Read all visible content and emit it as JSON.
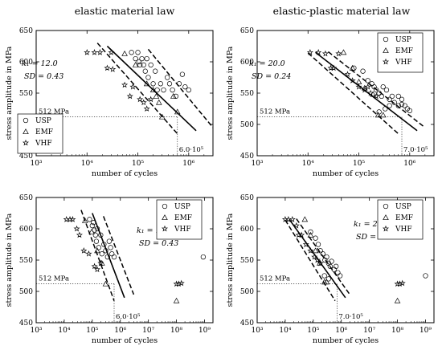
{
  "column_titles": [
    "elastic material law",
    "elastic-plastic material law"
  ],
  "chart_data": [
    {
      "type": "scatter",
      "xlabel": "number of cycles",
      "ylabel": "stress amplitude in MPa",
      "x_scale": "log",
      "xlim": [
        1000,
        3000000
      ],
      "ylim": [
        450,
        650
      ],
      "x_ticks": [
        "10³",
        "10⁴",
        "10⁵",
        "10⁶"
      ],
      "y_ticks": [
        450,
        500,
        550,
        600,
        650
      ],
      "reference_stress_label": "512 MPa",
      "reference_cycles_label": "6.0·10⁵",
      "k_label": "k₁ = 12.0",
      "sd_label": "SD = 0.43",
      "legend": [
        "USP",
        "EMF",
        "VHF"
      ],
      "legend_position": "lower-left",
      "series": [
        {
          "name": "USP",
          "marker": "circle",
          "points": [
            [
              75000,
              615
            ],
            [
              90000,
              605
            ],
            [
              100000,
              615
            ],
            [
              105000,
              600
            ],
            [
              110000,
              595
            ],
            [
              120000,
              605
            ],
            [
              130000,
              595
            ],
            [
              140000,
              585
            ],
            [
              150000,
              605
            ],
            [
              160000,
              575
            ],
            [
              180000,
              595
            ],
            [
              200000,
              565
            ],
            [
              220000,
              585
            ],
            [
              240000,
              555
            ],
            [
              280000,
              565
            ],
            [
              320000,
              555
            ],
            [
              380000,
              575
            ],
            [
              420000,
              565
            ],
            [
              480000,
              555
            ],
            [
              560000,
              545
            ],
            [
              650000,
              565
            ],
            [
              750000,
              580
            ],
            [
              850000,
              560
            ],
            [
              1000000,
              555
            ]
          ]
        },
        {
          "name": "EMF",
          "marker": "triangle",
          "points": [
            [
              55000,
              613
            ],
            [
              90000,
              595
            ],
            [
              150000,
              565
            ],
            [
              200000,
              555
            ],
            [
              230000,
              545
            ],
            [
              260000,
              535
            ],
            [
              300000,
              512
            ],
            [
              500000,
              545
            ],
            [
              600000,
              520
            ]
          ]
        },
        {
          "name": "VHF",
          "marker": "star",
          "points": [
            [
              10000,
              615
            ],
            [
              14000,
              615
            ],
            [
              18000,
              615
            ],
            [
              30000,
              615
            ],
            [
              25000,
              590
            ],
            [
              32000,
              588
            ],
            [
              55000,
              563
            ],
            [
              80000,
              560
            ],
            [
              70000,
              545
            ],
            [
              110000,
              540
            ],
            [
              130000,
              535
            ],
            [
              150000,
              525
            ],
            [
              180000,
              540
            ]
          ]
        }
      ],
      "median_line": [
        [
          25000,
          625
        ],
        [
          1400000,
          490
        ]
      ],
      "scatter_band_lines": [
        [
          [
            16000,
            630
          ],
          [
            600000,
            485
          ]
        ],
        [
          [
            160000,
            620
          ],
          [
            3000000,
            495
          ]
        ]
      ],
      "reference_point": [
        600000,
        512
      ]
    },
    {
      "type": "scatter",
      "xlabel": "number of cycles",
      "ylabel": "stress amplitude in MPa",
      "x_scale": "log",
      "xlim": [
        1000,
        3000000
      ],
      "ylim": [
        450,
        650
      ],
      "x_ticks": [
        "10³",
        "10⁴",
        "10⁵",
        "10⁶"
      ],
      "y_ticks": [
        450,
        500,
        550,
        600,
        650
      ],
      "reference_stress_label": "512 MPa",
      "reference_cycles_label": "7.0·10⁵",
      "k_label": "k₁ = 20.0",
      "sd_label": "SD = 0.24",
      "legend": [
        "USP",
        "EMF",
        "VHF"
      ],
      "legend_position": "upper-right",
      "series": [
        {
          "name": "USP",
          "marker": "circle",
          "points": [
            [
              80000,
              590
            ],
            [
              120000,
              585
            ],
            [
              150000,
              570
            ],
            [
              180000,
              565
            ],
            [
              200000,
              560
            ],
            [
              220000,
              555
            ],
            [
              250000,
              550
            ],
            [
              280000,
              545
            ],
            [
              300000,
              560
            ],
            [
              350000,
              555
            ],
            [
              400000,
              540
            ],
            [
              450000,
              545
            ],
            [
              500000,
              535
            ],
            [
              600000,
              530
            ],
            [
              700000,
              540
            ],
            [
              800000,
              530
            ],
            [
              900000,
              525
            ],
            [
              1000000,
              522
            ],
            [
              250000,
              520
            ],
            [
              330000,
              525
            ],
            [
              400000,
              530
            ],
            [
              600000,
              545
            ],
            [
              700000,
              532
            ]
          ]
        },
        {
          "name": "EMF",
          "marker": "triangle",
          "points": [
            [
              50000,
              615
            ],
            [
              75000,
              590
            ],
            [
              100000,
              568
            ],
            [
              130000,
              558
            ],
            [
              190000,
              548
            ],
            [
              240000,
              515
            ],
            [
              300000,
              515
            ]
          ]
        },
        {
          "name": "VHF",
          "marker": "star",
          "points": [
            [
              11000,
              615
            ],
            [
              16000,
              615
            ],
            [
              22000,
              613
            ],
            [
              40000,
              613
            ],
            [
              28000,
              590
            ],
            [
              32000,
              590
            ],
            [
              60000,
              580
            ],
            [
              75000,
              570
            ],
            [
              100000,
              560
            ],
            [
              130000,
              555
            ],
            [
              150000,
              560
            ],
            [
              170000,
              550
            ],
            [
              220000,
              545
            ]
          ]
        }
      ],
      "median_line": [
        [
          14000,
          615
        ],
        [
          1400000,
          490
        ]
      ],
      "scatter_band_lines": [
        [
          [
            10000,
            614
          ],
          [
            600000,
            485
          ]
        ],
        [
          [
            25000,
            616
          ],
          [
            2000000,
            495
          ]
        ]
      ],
      "reference_point": [
        700000,
        512
      ]
    },
    {
      "type": "scatter",
      "xlabel": "number of cycles",
      "ylabel": "stress amplitude in MPa",
      "x_scale": "log",
      "xlim": [
        1000,
        2000000000
      ],
      "ylim": [
        450,
        650
      ],
      "x_ticks": [
        "10³",
        "10⁴",
        "10⁵",
        "10⁶",
        "10⁷",
        "10⁸",
        "10⁹"
      ],
      "y_ticks": [
        450,
        500,
        550,
        600,
        650
      ],
      "reference_stress_label": "512 MPa",
      "reference_cycles_label": "6.0·10⁵",
      "k_label": "k₁ = 12.0",
      "sd_label": "SD = 0.43",
      "legend": [
        "USP",
        "EMF",
        "VHF"
      ],
      "legend_position": "upper-right",
      "series": [
        {
          "name": "USP",
          "marker": "circle",
          "points": [
            [
              80000,
              615
            ],
            [
              100000,
              605
            ],
            [
              110000,
              610
            ],
            [
              120000,
              598
            ],
            [
              130000,
              590
            ],
            [
              140000,
              580
            ],
            [
              150000,
              600
            ],
            [
              170000,
              570
            ],
            [
              200000,
              590
            ],
            [
              220000,
              560
            ],
            [
              260000,
              575
            ],
            [
              300000,
              565
            ],
            [
              350000,
              555
            ],
            [
              400000,
              580
            ],
            [
              450000,
              570
            ],
            [
              500000,
              560
            ],
            [
              600000,
              555
            ],
            [
              900000000,
              555
            ]
          ]
        },
        {
          "name": "EMF",
          "marker": "triangle",
          "points": [
            [
              55000,
              613
            ],
            [
              95000,
              595
            ],
            [
              150000,
              565
            ],
            [
              220000,
              545
            ],
            [
              300000,
              512
            ],
            [
              100000000,
              485
            ]
          ]
        },
        {
          "name": "VHF",
          "marker": "star",
          "points": [
            [
              12000,
              615
            ],
            [
              16000,
              615
            ],
            [
              20000,
              615
            ],
            [
              28000,
              600
            ],
            [
              35000,
              590
            ],
            [
              50000,
              565
            ],
            [
              75000,
              560
            ],
            [
              120000,
              540
            ],
            [
              150000,
              535
            ],
            [
              200000,
              545
            ],
            [
              100000000,
              512
            ],
            [
              120000000,
              512
            ],
            [
              150000000,
              513
            ]
          ]
        }
      ],
      "median_line": [
        [
          100000,
          625
        ],
        [
          1400000,
          490
        ]
      ],
      "scatter_band_lines": [
        [
          [
            40000,
            630
          ],
          [
            600000,
            485
          ]
        ],
        [
          [
            250000,
            620
          ],
          [
            3000000,
            495
          ]
        ]
      ],
      "reference_point": [
        600000,
        512
      ]
    },
    {
      "type": "scatter",
      "xlabel": "number of cycles",
      "ylabel": "stress amplitude in MPa",
      "x_scale": "log",
      "xlim": [
        1000,
        2000000000
      ],
      "ylim": [
        450,
        650
      ],
      "x_ticks": [
        "10³",
        "10⁴",
        "10⁵",
        "10⁶",
        "10⁷",
        "10⁸",
        "10⁹"
      ],
      "y_ticks": [
        450,
        500,
        550,
        600,
        650
      ],
      "reference_stress_label": "512 MPa",
      "reference_cycles_label": "7.0·10⁵",
      "k_label": "k₁ = 20.0",
      "sd_label": "SD = 0.24",
      "legend": [
        "USP",
        "EMF",
        "VHF"
      ],
      "legend_position": "upper-right",
      "series": [
        {
          "name": "USP",
          "marker": "circle",
          "points": [
            [
              80000,
              595
            ],
            [
              120000,
              585
            ],
            [
              150000,
              575
            ],
            [
              180000,
              565
            ],
            [
              220000,
              560
            ],
            [
              260000,
              550
            ],
            [
              300000,
              555
            ],
            [
              350000,
              545
            ],
            [
              400000,
              540
            ],
            [
              450000,
              548
            ],
            [
              550000,
              535
            ],
            [
              650000,
              540
            ],
            [
              750000,
              530
            ],
            [
              900000,
              525
            ],
            [
              250000,
              525
            ],
            [
              350000,
              520
            ],
            [
              1000000000,
              525
            ]
          ]
        },
        {
          "name": "EMF",
          "marker": "triangle",
          "points": [
            [
              50000,
              615
            ],
            [
              80000,
              590
            ],
            [
              120000,
              565
            ],
            [
              170000,
              545
            ],
            [
              250000,
              515
            ],
            [
              300000,
              515
            ],
            [
              100000000,
              485
            ]
          ]
        },
        {
          "name": "VHF",
          "marker": "star",
          "points": [
            [
              10000,
              615
            ],
            [
              13000,
              615
            ],
            [
              18000,
              615
            ],
            [
              25000,
              605
            ],
            [
              30000,
              590
            ],
            [
              38000,
              590
            ],
            [
              55000,
              575
            ],
            [
              80000,
              565
            ],
            [
              110000,
              555
            ],
            [
              140000,
              550
            ],
            [
              180000,
              545
            ],
            [
              100000000,
              512
            ],
            [
              120000000,
              512
            ],
            [
              150000000,
              513
            ]
          ]
        }
      ],
      "median_line": [
        [
          14000,
          615
        ],
        [
          1400000,
          490
        ]
      ],
      "scatter_band_lines": [
        [
          [
            10000,
            614
          ],
          [
            600000,
            485
          ]
        ],
        [
          [
            25000,
            616
          ],
          [
            2000000,
            495
          ]
        ]
      ],
      "reference_point": [
        700000,
        512
      ]
    }
  ]
}
